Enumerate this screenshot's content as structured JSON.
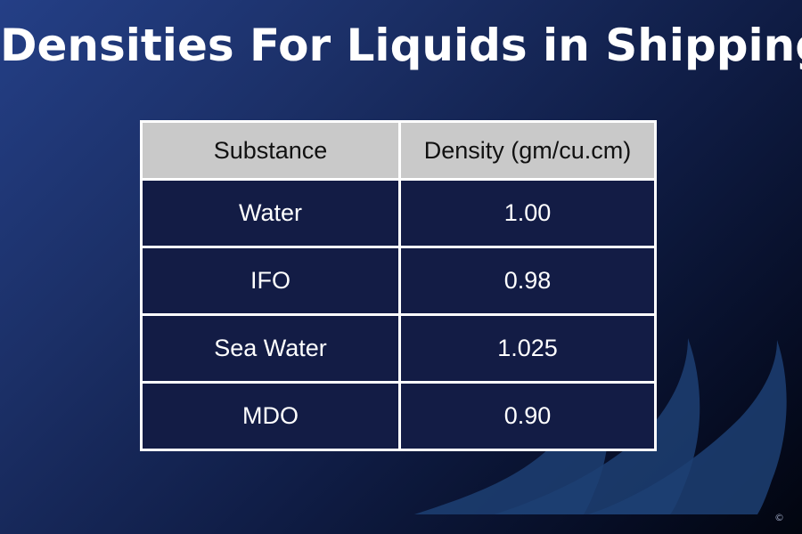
{
  "title": "Densities For Liquids in Shipping",
  "table": {
    "headers": [
      "Substance",
      "Density (gm/cu.cm)"
    ],
    "rows": [
      {
        "substance": "Water",
        "density": "1.00"
      },
      {
        "substance": "IFO",
        "density": "0.98"
      },
      {
        "substance": "Sea Water",
        "density": "1.025"
      },
      {
        "substance": "MDO",
        "density": "0.90"
      }
    ]
  },
  "footer": {
    "copyright": "©"
  },
  "colors": {
    "background_start": "#243f86",
    "background_end": "#02050f",
    "header_fill": "#c9c9c9",
    "cell_fill": "#131c45",
    "grid_line": "#ffffff",
    "watermark": "#1d3f73"
  }
}
